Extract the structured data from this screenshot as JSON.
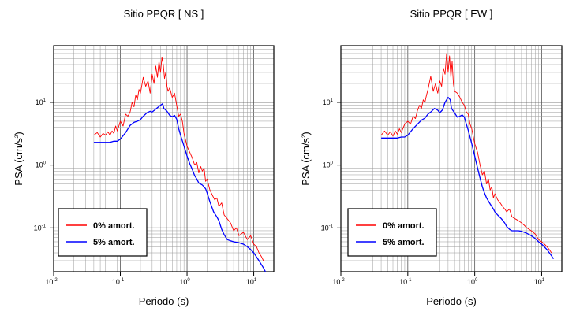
{
  "chart_data": [
    {
      "type": "line",
      "title": "Sitio PPQR [ NS ]",
      "xlabel": "Periodo (s)",
      "ylabel_base": "PSA (cm/s",
      "ylabel_sup": "2",
      "ylabel_end": ")",
      "x_scale": "log",
      "y_scale": "log",
      "xlim": [
        0.01,
        20
      ],
      "ylim": [
        0.02,
        80
      ],
      "grid": true,
      "legend_position": "bottom-left",
      "x_ticks": [
        {
          "base": "10",
          "exp": "-2",
          "value": 0.01
        },
        {
          "base": "10",
          "exp": "-1",
          "value": 0.1
        },
        {
          "base": "10",
          "exp": "0",
          "value": 1
        },
        {
          "base": "10",
          "exp": "1",
          "value": 10
        }
      ],
      "y_ticks": [
        {
          "base": "10",
          "exp": "-1",
          "value": 0.1
        },
        {
          "base": "10",
          "exp": "0",
          "value": 1
        },
        {
          "base": "10",
          "exp": "1",
          "value": 10
        }
      ],
      "series": [
        {
          "name": "0% amort.",
          "color": "#ff0000",
          "x": [
            0.04,
            0.045,
            0.05,
            0.055,
            0.06,
            0.065,
            0.07,
            0.075,
            0.08,
            0.085,
            0.09,
            0.1,
            0.11,
            0.12,
            0.13,
            0.14,
            0.15,
            0.16,
            0.17,
            0.18,
            0.19,
            0.2,
            0.22,
            0.24,
            0.26,
            0.28,
            0.3,
            0.32,
            0.34,
            0.36,
            0.38,
            0.4,
            0.42,
            0.44,
            0.46,
            0.48,
            0.5,
            0.52,
            0.55,
            0.6,
            0.65,
            0.7,
            0.75,
            0.8,
            0.85,
            0.9,
            1.0,
            1.1,
            1.2,
            1.3,
            1.4,
            1.5,
            1.6,
            1.7,
            1.8,
            1.9,
            2.0,
            2.2,
            2.4,
            2.6,
            2.8,
            3.0,
            3.3,
            3.6,
            4.0,
            4.5,
            5.0,
            5.5,
            6.0,
            7.0,
            8.0,
            9.0,
            10.0,
            11.0,
            12.0,
            13.0,
            14.0
          ],
          "y": [
            3.0,
            3.3,
            2.8,
            3.2,
            3.0,
            3.4,
            3.0,
            3.5,
            3.2,
            4.2,
            3.5,
            5.0,
            4.2,
            6.5,
            6.0,
            7.0,
            10.0,
            8.5,
            13.0,
            11.0,
            16.0,
            14.0,
            25.0,
            18.0,
            22.0,
            14.0,
            28.0,
            20.0,
            38.0,
            25.0,
            45.0,
            30.0,
            52.0,
            40.0,
            24.0,
            30.0,
            18.0,
            15.0,
            17.0,
            12.0,
            14.0,
            9.0,
            6.0,
            6.5,
            5.0,
            3.2,
            2.0,
            1.6,
            1.3,
            1.0,
            1.1,
            0.75,
            0.95,
            0.8,
            0.9,
            0.55,
            0.6,
            0.4,
            0.33,
            0.28,
            0.3,
            0.22,
            0.25,
            0.16,
            0.14,
            0.12,
            0.09,
            0.1,
            0.075,
            0.085,
            0.065,
            0.075,
            0.055,
            0.05,
            0.04,
            0.035,
            0.03
          ]
        },
        {
          "name": "5% amort.",
          "color": "#0000ff",
          "x": [
            0.04,
            0.05,
            0.06,
            0.07,
            0.08,
            0.09,
            0.1,
            0.12,
            0.14,
            0.16,
            0.18,
            0.2,
            0.22,
            0.25,
            0.28,
            0.3,
            0.33,
            0.36,
            0.4,
            0.43,
            0.45,
            0.5,
            0.55,
            0.6,
            0.65,
            0.7,
            0.75,
            0.8,
            0.9,
            1.0,
            1.1,
            1.2,
            1.3,
            1.4,
            1.5,
            1.7,
            1.9,
            2.0,
            2.2,
            2.5,
            2.8,
            3.0,
            3.3,
            3.6,
            4.0,
            4.5,
            5.0,
            6.0,
            7.0,
            8.0,
            9.0,
            10.0,
            12.0,
            14.0,
            15.0
          ],
          "y": [
            2.3,
            2.3,
            2.3,
            2.3,
            2.4,
            2.4,
            2.6,
            3.3,
            4.3,
            4.8,
            5.0,
            5.3,
            6.0,
            6.8,
            7.2,
            7.0,
            7.6,
            8.2,
            9.0,
            9.5,
            8.0,
            7.2,
            6.2,
            5.9,
            6.2,
            5.4,
            3.8,
            3.0,
            2.0,
            1.4,
            1.05,
            0.85,
            0.68,
            0.6,
            0.52,
            0.48,
            0.42,
            0.36,
            0.26,
            0.18,
            0.15,
            0.13,
            0.095,
            0.078,
            0.065,
            0.062,
            0.06,
            0.058,
            0.055,
            0.05,
            0.045,
            0.04,
            0.03,
            0.023,
            0.02
          ]
        }
      ]
    },
    {
      "type": "line",
      "title": "Sitio PPQR [ EW ]",
      "xlabel": "Periodo (s)",
      "ylabel_base": "PSA (cm/s",
      "ylabel_sup": "2",
      "ylabel_end": ")",
      "x_scale": "log",
      "y_scale": "log",
      "xlim": [
        0.01,
        20
      ],
      "ylim": [
        0.02,
        80
      ],
      "grid": true,
      "legend_position": "bottom-left",
      "x_ticks": [
        {
          "base": "10",
          "exp": "-2",
          "value": 0.01
        },
        {
          "base": "10",
          "exp": "-1",
          "value": 0.1
        },
        {
          "base": "10",
          "exp": "0",
          "value": 1
        },
        {
          "base": "10",
          "exp": "1",
          "value": 10
        }
      ],
      "y_ticks": [
        {
          "base": "10",
          "exp": "-1",
          "value": 0.1
        },
        {
          "base": "10",
          "exp": "0",
          "value": 1
        },
        {
          "base": "10",
          "exp": "1",
          "value": 10
        }
      ],
      "series": [
        {
          "name": "0% amort.",
          "color": "#ff0000",
          "x": [
            0.04,
            0.045,
            0.05,
            0.055,
            0.06,
            0.065,
            0.07,
            0.075,
            0.08,
            0.09,
            0.1,
            0.11,
            0.12,
            0.13,
            0.14,
            0.15,
            0.16,
            0.17,
            0.18,
            0.19,
            0.2,
            0.22,
            0.24,
            0.26,
            0.28,
            0.3,
            0.32,
            0.34,
            0.36,
            0.38,
            0.4,
            0.42,
            0.44,
            0.46,
            0.48,
            0.5,
            0.55,
            0.6,
            0.65,
            0.7,
            0.75,
            0.8,
            0.85,
            0.9,
            1.0,
            1.1,
            1.2,
            1.3,
            1.4,
            1.5,
            1.6,
            1.7,
            1.8,
            1.9,
            2.0,
            2.2,
            2.4,
            2.6,
            2.8,
            3.0,
            3.3,
            3.6,
            4.0,
            4.5,
            5.0,
            5.5,
            6.0,
            7.0,
            8.0,
            9.0,
            10.0,
            11.0,
            12.0,
            13.0,
            14.0
          ],
          "y": [
            3.0,
            3.5,
            3.0,
            3.4,
            2.9,
            3.5,
            3.1,
            3.8,
            3.3,
            4.5,
            5.0,
            4.5,
            6.0,
            5.5,
            7.5,
            9.0,
            8.0,
            11.0,
            10.0,
            13.0,
            16.0,
            26.0,
            15.0,
            20.0,
            14.0,
            22.0,
            18.0,
            35.0,
            28.0,
            60.0,
            30.0,
            55.0,
            25.0,
            45.0,
            20.0,
            15.0,
            14.0,
            12.0,
            10.0,
            9.0,
            7.0,
            6.5,
            4.5,
            3.8,
            2.2,
            1.6,
            1.0,
            0.7,
            0.8,
            0.5,
            0.6,
            0.4,
            0.45,
            0.3,
            0.35,
            0.28,
            0.25,
            0.22,
            0.2,
            0.18,
            0.2,
            0.15,
            0.14,
            0.13,
            0.12,
            0.11,
            0.1,
            0.09,
            0.08,
            0.065,
            0.06,
            0.055,
            0.05,
            0.045,
            0.04
          ]
        },
        {
          "name": "5% amort.",
          "color": "#0000ff",
          "x": [
            0.04,
            0.05,
            0.06,
            0.07,
            0.08,
            0.09,
            0.1,
            0.12,
            0.14,
            0.16,
            0.18,
            0.2,
            0.22,
            0.25,
            0.28,
            0.3,
            0.33,
            0.36,
            0.4,
            0.43,
            0.45,
            0.5,
            0.55,
            0.6,
            0.65,
            0.7,
            0.75,
            0.8,
            0.9,
            1.0,
            1.1,
            1.2,
            1.3,
            1.4,
            1.5,
            1.7,
            1.9,
            2.0,
            2.2,
            2.5,
            2.8,
            3.0,
            3.3,
            3.6,
            4.0,
            4.5,
            5.0,
            6.0,
            7.0,
            8.0,
            9.0,
            10.0,
            12.0,
            14.0,
            15.0
          ],
          "y": [
            2.7,
            2.7,
            2.7,
            2.7,
            2.8,
            2.8,
            3.0,
            3.8,
            4.5,
            5.2,
            5.6,
            6.5,
            7.0,
            8.0,
            7.5,
            6.8,
            7.6,
            10.0,
            12.0,
            11.0,
            8.0,
            6.8,
            5.8,
            6.0,
            6.3,
            5.8,
            4.5,
            3.6,
            2.2,
            1.4,
            0.9,
            0.62,
            0.45,
            0.36,
            0.3,
            0.24,
            0.2,
            0.18,
            0.16,
            0.14,
            0.12,
            0.105,
            0.095,
            0.09,
            0.09,
            0.09,
            0.088,
            0.082,
            0.075,
            0.068,
            0.06,
            0.055,
            0.045,
            0.036,
            0.032
          ]
        }
      ]
    }
  ]
}
